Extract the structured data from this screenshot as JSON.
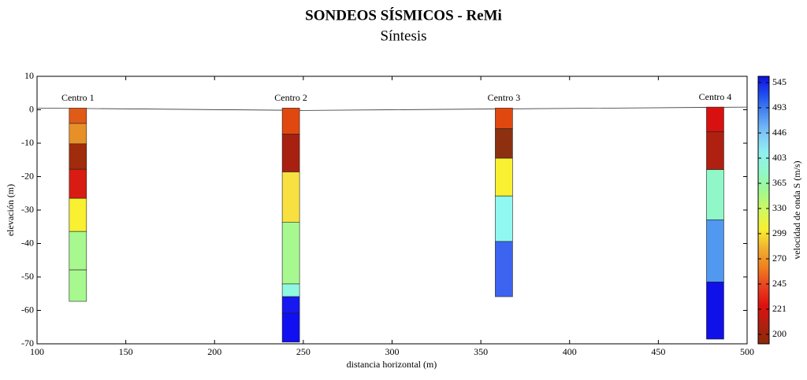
{
  "chart_data": {
    "type": "profile",
    "title": "SONDEOS SÍSMICOS - ReMi",
    "subtitle": "Síntesis",
    "x_label": "distancia horizontal (m)",
    "y_label": "elevación (m)",
    "xlim": [
      100,
      500
    ],
    "xticks": [
      100,
      150,
      200,
      250,
      300,
      350,
      400,
      450,
      500
    ],
    "ylim": [
      -70,
      10
    ],
    "yticks": [
      -70,
      -60,
      -50,
      -40,
      -30,
      -20,
      -10,
      0,
      10
    ],
    "surface": {
      "x": [
        100,
        250,
        500
      ],
      "y": [
        0.5,
        -0.2,
        0.8
      ]
    },
    "soundings": [
      {
        "name": "Centro 1",
        "x": 123,
        "top": 0.5,
        "layers": [
          {
            "bottom": -4.1,
            "color": "#e05a18"
          },
          {
            "bottom": -10.2,
            "color": "#e89028"
          },
          {
            "bottom": -17.8,
            "color": "#a02c0c"
          },
          {
            "bottom": -26.5,
            "color": "#d81c14"
          },
          {
            "bottom": -36.4,
            "color": "#f8f030"
          },
          {
            "bottom": -47.9,
            "color": "#a8f890"
          },
          {
            "bottom": -57.3,
            "color": "#a8f890"
          }
        ]
      },
      {
        "name": "Centro 2",
        "x": 243,
        "top": 0.5,
        "layers": [
          {
            "bottom": -7.3,
            "color": "#e04810"
          },
          {
            "bottom": -18.6,
            "color": "#a82010"
          },
          {
            "bottom": -33.6,
            "color": "#f8e040"
          },
          {
            "bottom": -52.1,
            "color": "#a8f890"
          },
          {
            "bottom": -55.9,
            "color": "#90f8e0"
          },
          {
            "bottom": -60.8,
            "color": "#1818f0"
          },
          {
            "bottom": -69.5,
            "color": "#1010f0"
          }
        ]
      },
      {
        "name": "Centro 3",
        "x": 363,
        "top": 0.5,
        "layers": [
          {
            "bottom": -5.6,
            "color": "#e04810"
          },
          {
            "bottom": -14.5,
            "color": "#8c3010"
          },
          {
            "bottom": -25.8,
            "color": "#f8f030"
          },
          {
            "bottom": -39.4,
            "color": "#90f8f0"
          },
          {
            "bottom": -55.9,
            "color": "#3c64f0"
          }
        ]
      },
      {
        "name": "Centro 4",
        "x": 482,
        "top": 0.8,
        "layers": [
          {
            "bottom": -6.6,
            "color": "#d81010"
          },
          {
            "bottom": -17.9,
            "color": "#b02010"
          },
          {
            "bottom": -32.9,
            "color": "#90f8c8"
          },
          {
            "bottom": -51.5,
            "color": "#5098f0"
          },
          {
            "bottom": -68.6,
            "color": "#1010e8"
          }
        ]
      }
    ],
    "colorbar": {
      "label": "velocidad de onda S (m/s)",
      "ticks": [
        200,
        221,
        245,
        270,
        299,
        330,
        365,
        403,
        446,
        493,
        545
      ],
      "colors": [
        "#8b2a08",
        "#b02010",
        "#e01010",
        "#e84020",
        "#f08020",
        "#f0b030",
        "#f8f030",
        "#d0f860",
        "#a0f890",
        "#90f8c8",
        "#90f0f0",
        "#80c8f8",
        "#5090f0",
        "#2050f0",
        "#1010e0"
      ]
    }
  }
}
